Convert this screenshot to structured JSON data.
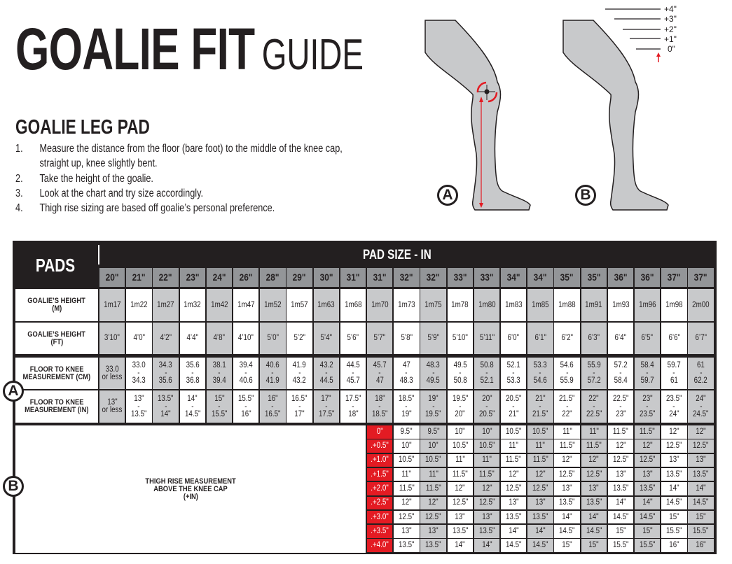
{
  "header": {
    "title_bold": "GOALIE FIT",
    "title_light": "GUIDE"
  },
  "section": {
    "title": "GOALIE LEG PAD",
    "steps": [
      {
        "num": "1.",
        "text": "Measure the distance from the floor (bare foot) to the middle of the knee cap,"
      },
      {
        "num": "",
        "text": "straight up, knee slightly bent."
      },
      {
        "num": "2.",
        "text": "Take the height of the goalie."
      },
      {
        "num": "3.",
        "text": "Look at the chart and try size accordingly."
      },
      {
        "num": "4.",
        "text": "Thigh rise sizing are based off goalie’s personal preference."
      }
    ]
  },
  "diagram": {
    "label_a": "A",
    "label_b": "B",
    "rise_labels": [
      "+4\"",
      "+3\"",
      "+2\"",
      "+1\"",
      "0\""
    ],
    "accent": "#e31b23",
    "leg_fill": "#c8c9cb"
  },
  "table": {
    "pads_label": "PADS",
    "pad_size_label": "PAD SIZE - IN",
    "sizes": [
      "20\"",
      "21\"",
      "22\"",
      "23\"",
      "24\"",
      "26\"",
      "28\"",
      "29\"",
      "30\"",
      "31\"",
      "31\"",
      "32\"",
      "32\"",
      "33\"",
      "33\"",
      "34\"",
      "34\"",
      "35\"",
      "35\"",
      "36\"",
      "36\"",
      "37\"",
      "37\""
    ],
    "row_labels": {
      "height_m": [
        "GOALIE’S HEIGHT",
        "(M)"
      ],
      "height_ft": [
        "GOALIE’S HEIGHT",
        "(FT)"
      ],
      "knee_cm": [
        "FLOOR TO KNEE",
        "MEASUREMENT  (CM)"
      ],
      "knee_in": [
        "FLOOR TO KNEE",
        "MEASUREMENT  (IN)"
      ]
    },
    "marker_a": "A",
    "marker_b": "B",
    "height_m": [
      "1m17",
      "1m22",
      "1m27",
      "1m32",
      "1m42",
      "1m47",
      "1m52",
      "1m57",
      "1m63",
      "1m68",
      "1m70",
      "1m73",
      "1m75",
      "1m78",
      "1m80",
      "1m83",
      "1m85",
      "1m88",
      "1m91",
      "1m93",
      "1m96",
      "1m98",
      "2m00"
    ],
    "height_ft": [
      "3’10\"",
      "4’0\"",
      "4’2\"",
      "4’4\"",
      "4’8\"",
      "4’10\"",
      "5’0\"",
      "5’2\"",
      "5’4\"",
      "5’6\"",
      "5’7\"",
      "5’8\"",
      "5’9\"",
      "5’10\"",
      "5’11\"",
      "6’0\"",
      "6’1\"",
      "6’2\"",
      "6’3\"",
      "6’4\"",
      "6’5\"",
      "6’6\"",
      "6’7\""
    ],
    "knee_cm": [
      [
        "33.0",
        "or less"
      ],
      [
        "33.0",
        "34.3"
      ],
      [
        "34.3",
        "35.6"
      ],
      [
        "35.6",
        "36.8"
      ],
      [
        "38.1",
        "39.4"
      ],
      [
        "39.4",
        "40.6"
      ],
      [
        "40.6",
        "41.9"
      ],
      [
        "41.9",
        "43.2"
      ],
      [
        "43.2",
        "44.5"
      ],
      [
        "44.5",
        "45.7"
      ],
      [
        "45.7",
        "47"
      ],
      [
        "47",
        "48.3"
      ],
      [
        "48.3",
        "49.5"
      ],
      [
        "49.5",
        "50.8"
      ],
      [
        "50.8",
        "52.1"
      ],
      [
        "52.1",
        "53.3"
      ],
      [
        "53.3",
        "54.6"
      ],
      [
        "54.6",
        "55.9"
      ],
      [
        "55.9",
        "57.2"
      ],
      [
        "57.2",
        "58.4"
      ],
      [
        "58.4",
        "59.7"
      ],
      [
        "59.7",
        "61"
      ],
      [
        "61",
        "62.2"
      ]
    ],
    "knee_in": [
      [
        "13\"",
        "or less"
      ],
      [
        "13\"",
        "13.5\""
      ],
      [
        "13.5\"",
        "14\""
      ],
      [
        "14\"",
        "14.5\""
      ],
      [
        "15\"",
        "15.5\""
      ],
      [
        "15.5\"",
        "16\""
      ],
      [
        "16\"",
        "16.5\""
      ],
      [
        "16.5\"",
        "17\""
      ],
      [
        "17\"",
        "17.5\""
      ],
      [
        "17.5\"",
        "18\""
      ],
      [
        "18\"",
        "18.5\""
      ],
      [
        "18.5\"",
        "19\""
      ],
      [
        "19\"",
        "19.5\""
      ],
      [
        "19.5\"",
        "20\""
      ],
      [
        "20\"",
        "20.5\""
      ],
      [
        "20.5\"",
        "21\""
      ],
      [
        "21\"",
        "21.5\""
      ],
      [
        "21.5\"",
        "22\""
      ],
      [
        "22\"",
        "22.5\""
      ],
      [
        "22.5\"",
        "23\""
      ],
      [
        "23\"",
        "23.5\""
      ],
      [
        "23.5\"",
        "24\""
      ],
      [
        "24\"",
        "24.5\""
      ]
    ],
    "thigh_label": [
      "THIGH RISE MEASUREMENT",
      "ABOVE THE KNEE CAP",
      "(+IN)"
    ],
    "thigh_rows": [
      {
        "label": "0\"",
        "values": [
          "9.5\"",
          "9.5\"",
          "10\"",
          "10\"",
          "10.5\"",
          "10.5\"",
          "11\"",
          "11\"",
          "11.5\"",
          "11.5\"",
          "12\"",
          "12\""
        ]
      },
      {
        "label": ".+0.5\"",
        "values": [
          "10\"",
          "10\"",
          "10.5\"",
          "10.5\"",
          "11\"",
          "11\"",
          "11.5\"",
          "11.5\"",
          "12\"",
          "12\"",
          "12.5\"",
          "12.5\""
        ]
      },
      {
        "label": ".+1.0\"",
        "values": [
          "10.5\"",
          "10.5\"",
          "11\"",
          "11\"",
          "11.5\"",
          "11.5\"",
          "12\"",
          "12\"",
          "12.5\"",
          "12.5\"",
          "13\"",
          "13\""
        ]
      },
      {
        "label": ".+1.5\"",
        "values": [
          "11\"",
          "11\"",
          "11.5\"",
          "11.5\"",
          "12\"",
          "12\"",
          "12.5\"",
          "12.5\"",
          "13\"",
          "13\"",
          "13.5\"",
          "13.5\""
        ]
      },
      {
        "label": ".+2.0\"",
        "values": [
          "11.5\"",
          "11.5\"",
          "12\"",
          "12\"",
          "12.5\"",
          "12.5\"",
          "13\"",
          "13\"",
          "13.5\"",
          "13.5\"",
          "14\"",
          "14\""
        ]
      },
      {
        "label": ".+2.5\"",
        "values": [
          "12\"",
          "12\"",
          "12.5\"",
          "12.5\"",
          "13\"",
          "13\"",
          "13.5\"",
          "13.5\"",
          "14\"",
          "14\"",
          "14.5\"",
          "14.5\""
        ]
      },
      {
        "label": ".+3.0\"",
        "values": [
          "12.5\"",
          "12.5\"",
          "13\"",
          "13\"",
          "13.5\"",
          "13.5\"",
          "14\"",
          "14\"",
          "14.5\"",
          "14.5\"",
          "15\"",
          "15\""
        ]
      },
      {
        "label": ".+3.5\"",
        "values": [
          "13\"",
          "13\"",
          "13.5\"",
          "13.5\"",
          "14\"",
          "14\"",
          "14.5\"",
          "14.5\"",
          "15\"",
          "15\"",
          "15.5\"",
          "15.5\""
        ]
      },
      {
        "label": ".+4.0\"",
        "values": [
          "13.5\"",
          "13.5\"",
          "14\"",
          "14\"",
          "14.5\"",
          "14.5\"",
          "15\"",
          "15\"",
          "15.5\"",
          "15.5\"",
          "16\"",
          "16\""
        ]
      }
    ]
  }
}
